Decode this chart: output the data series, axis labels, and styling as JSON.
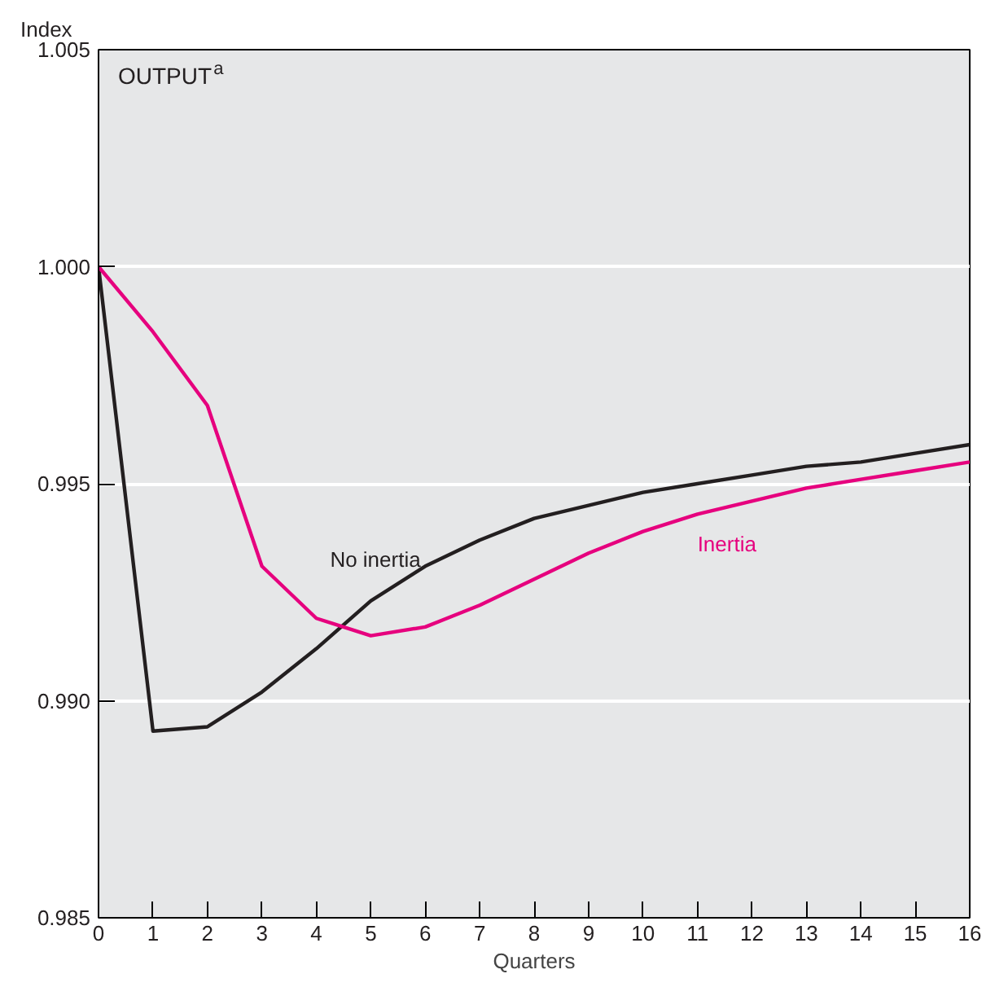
{
  "chart_data": {
    "type": "line",
    "title": "OUTPUT$^{a}$",
    "ylabel": "Index",
    "xlabel": "Quarters",
    "x": [
      0,
      1,
      2,
      3,
      4,
      5,
      6,
      7,
      8,
      9,
      10,
      11,
      12,
      13,
      14,
      15,
      16
    ],
    "series": [
      {
        "name": "No inertia",
        "color": "#231f20",
        "values": [
          1.0,
          0.9893,
          0.9894,
          0.9902,
          0.9912,
          0.9923,
          0.9931,
          0.9937,
          0.9942,
          0.9945,
          0.9948,
          0.995,
          0.9952,
          0.9954,
          0.9955,
          0.9957,
          0.9959
        ]
      },
      {
        "name": "Inertia",
        "color": "#e6007e",
        "values": [
          1.0,
          0.9985,
          0.9968,
          0.9931,
          0.9919,
          0.9915,
          0.9917,
          0.9922,
          0.9928,
          0.9934,
          0.9939,
          0.9943,
          0.9946,
          0.9949,
          0.9951,
          0.9953,
          0.9955
        ]
      }
    ],
    "xlim": [
      0,
      16
    ],
    "xticks": [
      0,
      1,
      2,
      3,
      4,
      5,
      6,
      7,
      8,
      9,
      10,
      11,
      12,
      13,
      14,
      15,
      16
    ],
    "ylim": [
      0.985,
      1.005
    ],
    "yticks": [
      0.985,
      {
        "value": 0.99,
        "label": "0.990"
      },
      0.995,
      {
        "value": 1.0,
        "label": "1.000"
      },
      1.005
    ],
    "grid": "y",
    "marker": "none",
    "line_style": "solid"
  }
}
